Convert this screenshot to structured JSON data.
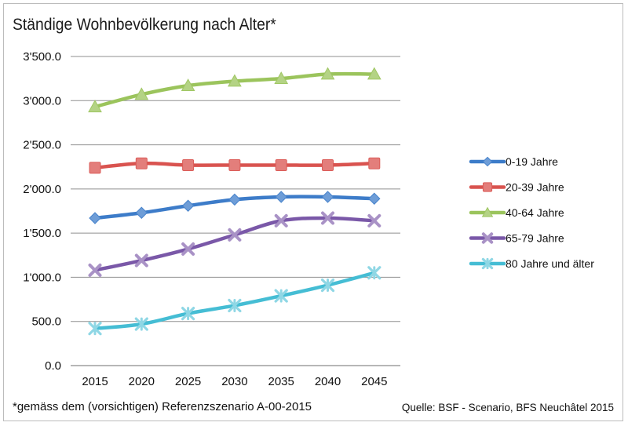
{
  "title": "Ständige Wohnbevölkerung nach Alter*",
  "footnote": "*gemäss dem (vorsichtigen) Referenzszenario A-00-2015",
  "source": "Quelle: BSF - Scenario, BFS Neuchâtel 2015",
  "chart_data": {
    "type": "line",
    "title": "Ständige Wohnbevölkerung nach Alter*",
    "xlabel": "",
    "ylabel": "",
    "x": [
      "2015",
      "2020",
      "2025",
      "2030",
      "2035",
      "2040",
      "2045"
    ],
    "ylim": [
      0,
      3500
    ],
    "yticks": [
      0,
      500,
      1000,
      1500,
      2000,
      2500,
      3000,
      3500
    ],
    "ytick_labels": [
      "0.0",
      "500.0",
      "1'000.0",
      "1'500.0",
      "2'000.0",
      "2'500.0",
      "3'000.0",
      "3'500.0"
    ],
    "grid": true,
    "legend_position": "right",
    "series": [
      {
        "name": "0-19 Jahre",
        "color": "#3d7cc9",
        "marker": "diamond",
        "values": [
          1670,
          1730,
          1810,
          1880,
          1910,
          1910,
          1890
        ]
      },
      {
        "name": "20-39 Jahre",
        "color": "#d9534f",
        "marker": "square",
        "values": [
          2240,
          2290,
          2270,
          2270,
          2270,
          2270,
          2290
        ]
      },
      {
        "name": "40-64 Jahre",
        "color": "#9bc45c",
        "marker": "triangle",
        "values": [
          2930,
          3070,
          3170,
          3220,
          3250,
          3300,
          3300
        ]
      },
      {
        "name": "65-79 Jahre",
        "color": "#7a58a8",
        "marker": "x",
        "values": [
          1080,
          1190,
          1320,
          1480,
          1640,
          1670,
          1640
        ]
      },
      {
        "name": "80 Jahre und älter",
        "color": "#45bdd4",
        "marker": "star",
        "values": [
          420,
          470,
          590,
          680,
          790,
          910,
          1050
        ]
      }
    ]
  }
}
